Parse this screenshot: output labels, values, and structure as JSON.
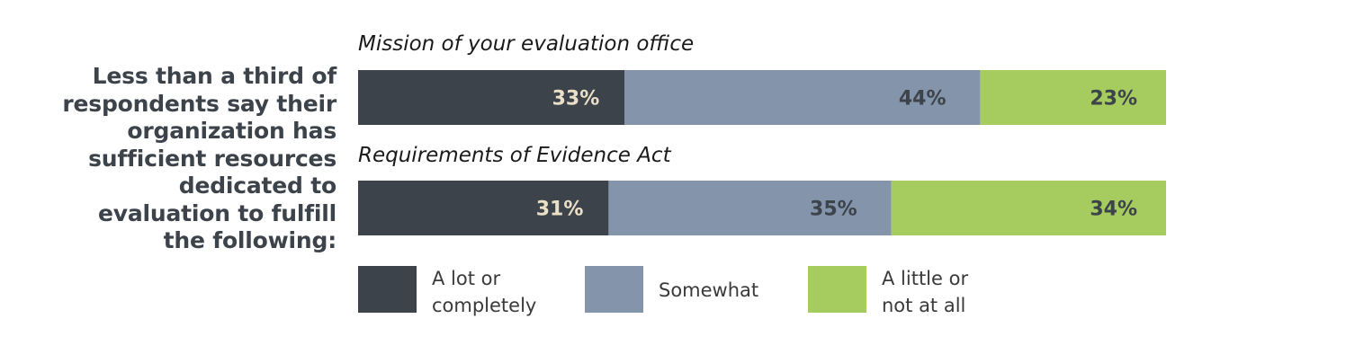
{
  "headline": "Less than a third of respondents say their organization has sufficient resources dedicated to evaluation to fulfill the following:",
  "colors": {
    "a_lot": "#3c434a",
    "somewhat": "#8494aa",
    "little": "#a6cc5f",
    "label_on_dark": "#eae0c8",
    "label_on_light": "#3c434a"
  },
  "chart_data": {
    "type": "bar",
    "orientation": "horizontal",
    "stacked": true,
    "unit": "%",
    "xlim": [
      0,
      100
    ],
    "categories": [
      "Mission of your evaluation office",
      "Requirements of Evidence Act"
    ],
    "series": [
      {
        "name": "A lot or completely",
        "legend_lines": [
          "A lot or",
          "completely"
        ],
        "color": "#3c434a",
        "label_color": "#eae0c8",
        "values": [
          33,
          31
        ],
        "labels": [
          "33%",
          "31%"
        ]
      },
      {
        "name": "Somewhat",
        "legend_lines": [
          "Somewhat"
        ],
        "color": "#8494aa",
        "label_color": "#3c434a",
        "values": [
          44,
          35
        ],
        "labels": [
          "44%",
          "35%"
        ]
      },
      {
        "name": "A little or not at all",
        "legend_lines": [
          "A little or",
          "not at all"
        ],
        "color": "#a6cc5f",
        "label_color": "#3c434a",
        "values": [
          23,
          34
        ],
        "labels": [
          "23%",
          "34%"
        ]
      }
    ],
    "legend_position": "bottom",
    "grid": false
  }
}
